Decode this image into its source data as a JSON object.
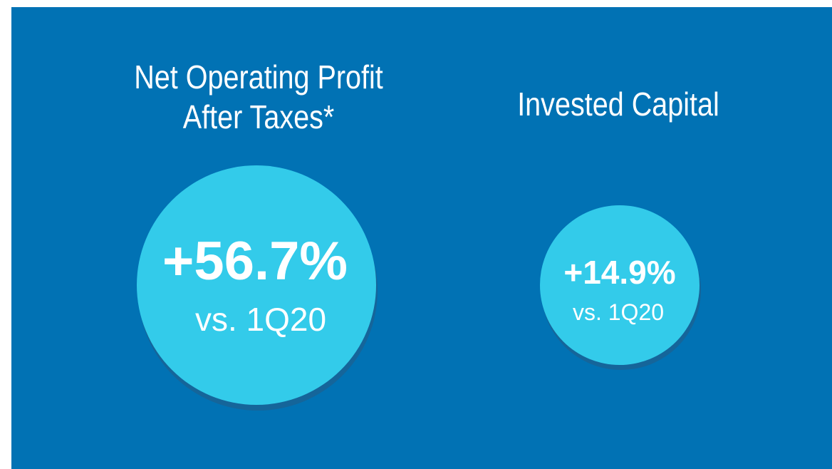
{
  "panels": [
    {
      "title_lines": [
        "Net Operating Profit",
        "After Taxes*"
      ],
      "value": "+56.7%",
      "comparison": "vs. 1Q20"
    },
    {
      "title_lines": [
        "Invested Capital"
      ],
      "value": "+14.9%",
      "comparison": "vs. 1Q20"
    }
  ]
}
